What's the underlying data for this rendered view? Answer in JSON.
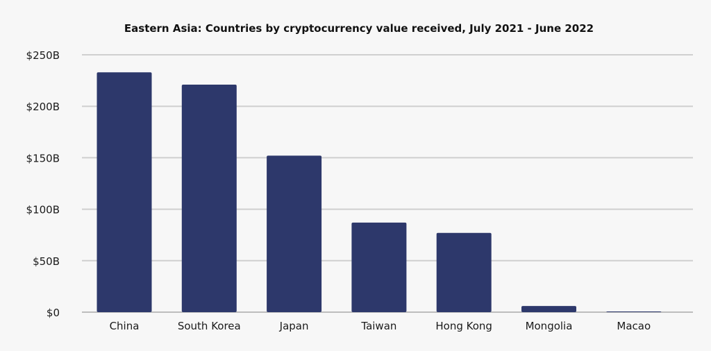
{
  "chart_data": {
    "type": "bar",
    "title": "Eastern Asia: Countries by cryptocurrency value received, July 2021 - June 2022",
    "xlabel": "",
    "ylabel": "",
    "categories": [
      "China",
      "South Korea",
      "Japan",
      "Taiwan",
      "Hong Kong",
      "Mongolia",
      "Macao"
    ],
    "values": [
      233,
      221,
      152,
      87,
      77,
      6,
      0.7
    ],
    "unit": "billions USD",
    "ylim": [
      0,
      250
    ],
    "yticks": [
      0,
      50,
      100,
      150,
      200,
      250
    ],
    "ytick_labels": [
      "$0",
      "$50B",
      "$100B",
      "$150B",
      "$200B",
      "$250B"
    ],
    "bar_color": "#2d386b",
    "grid": true,
    "legend": "none"
  }
}
